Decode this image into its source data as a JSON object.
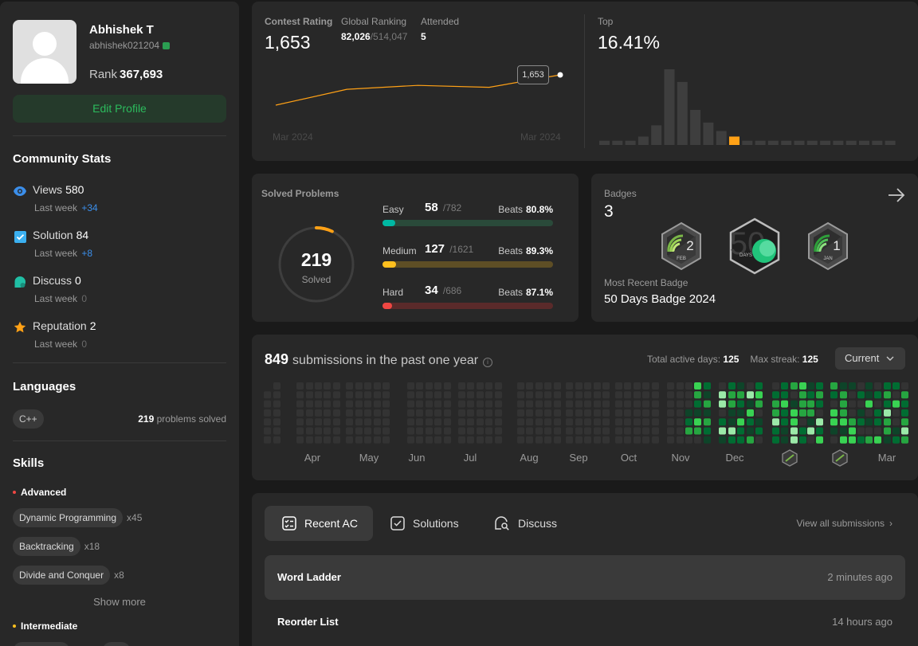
{
  "profile": {
    "name": "Abhishek T",
    "handle": "abhishek021204",
    "rank_label": "Rank",
    "rank_value": "367,693",
    "edit_label": "Edit Profile"
  },
  "community": {
    "title": "Community Stats",
    "stats": [
      {
        "label": "Views",
        "value": "580",
        "sub_label": "Last week",
        "delta": "+34",
        "icon": "eye-icon",
        "color": "#3b8eea"
      },
      {
        "label": "Solution",
        "value": "84",
        "sub_label": "Last week",
        "delta": "+8",
        "icon": "check-square-icon",
        "color": "#3bb0f0"
      },
      {
        "label": "Discuss",
        "value": "0",
        "sub_label": "Last week",
        "delta": "0",
        "icon": "chat-bubble-icon",
        "color": "#20bfa5"
      },
      {
        "label": "Reputation",
        "value": "2",
        "sub_label": "Last week",
        "delta": "0",
        "icon": "star-icon",
        "color": "#ffa116"
      }
    ]
  },
  "languages": {
    "title": "Languages",
    "items": [
      {
        "name": "C++",
        "count": "219",
        "suffix": "problems solved"
      }
    ]
  },
  "skills": {
    "title": "Skills",
    "advanced_label": "Advanced",
    "advanced": [
      {
        "name": "Dynamic Programming",
        "count": "x45"
      },
      {
        "name": "Backtracking",
        "count": "x18"
      },
      {
        "name": "Divide and Conquer",
        "count": "x8"
      }
    ],
    "show_more": "Show more",
    "intermediate_label": "Intermediate"
  },
  "contest": {
    "rating_label": "Contest Rating",
    "rating": "1,653",
    "global_label": "Global Ranking",
    "global_rank": "82,026",
    "global_total": "/514,047",
    "attended_label": "Attended",
    "attended": "5",
    "top_label": "Top",
    "top_value": "16.41%",
    "axis_start": "Mar 2024",
    "axis_end": "Mar 2024",
    "tooltip": "1,653",
    "rating_history": [
      1500,
      1580,
      1600,
      1590,
      1653
    ],
    "distribution": [
      3,
      3,
      3,
      6,
      14,
      54,
      45,
      25,
      16,
      10,
      6,
      3,
      3,
      3,
      3,
      3,
      3,
      3,
      3,
      3,
      3,
      3,
      3
    ],
    "highlight_index": 10,
    "accent": "#ffa116"
  },
  "solved": {
    "title": "Solved Problems",
    "total": "219",
    "total_label": "Solved",
    "total_fraction": 0.071,
    "difficulties": [
      {
        "name": "Easy",
        "solved": "58",
        "total": "/782",
        "beats_label": "Beats",
        "beats": "80.8%",
        "fraction": 0.074,
        "color": "#00b8a3",
        "track": "#2a4a3a"
      },
      {
        "name": "Medium",
        "solved": "127",
        "total": "/1621",
        "beats_label": "Beats",
        "beats": "89.3%",
        "fraction": 0.078,
        "color": "#ffc01e",
        "track": "#5e4e25"
      },
      {
        "name": "Hard",
        "solved": "34",
        "total": "/686",
        "beats_label": "Beats",
        "beats": "87.1%",
        "fraction": 0.05,
        "color": "#ef4743",
        "track": "#5a2a2a"
      }
    ]
  },
  "badges": {
    "title": "Badges",
    "count": "3",
    "recent_label": "Most Recent Badge",
    "recent_name": "50 Days Badge 2024",
    "items": [
      {
        "name": "feb-badge",
        "number": "2",
        "month": "FEB"
      },
      {
        "name": "50-days-badge",
        "number": "50",
        "month": "DAYS"
      },
      {
        "name": "jan-badge",
        "number": "1",
        "month": "JAN"
      }
    ]
  },
  "heatmap": {
    "count": "849",
    "label": "submissions in the past one year",
    "active_label": "Total active days:",
    "active_value": "125",
    "streak_label": "Max streak:",
    "streak_value": "125",
    "selector": "Current",
    "months": [
      "Apr",
      "May",
      "Jun",
      "Jul",
      "Aug",
      "Sep",
      "Oct",
      "Nov",
      "Dec",
      "",
      "",
      "Mar"
    ],
    "colors": [
      "#333333",
      "#0e4429",
      "#006d32",
      "#26a641",
      "#39d353",
      "#9be9a8"
    ]
  },
  "recent": {
    "tabs": [
      {
        "label": "Recent AC",
        "icon": "list-check-icon"
      },
      {
        "label": "Solutions",
        "icon": "check-box-icon"
      },
      {
        "label": "Discuss",
        "icon": "chat-search-icon"
      }
    ],
    "view_all": "View all submissions",
    "items": [
      {
        "title": "Word Ladder",
        "time": "2 minutes ago"
      },
      {
        "title": "Reorder List",
        "time": "14 hours ago"
      }
    ]
  }
}
